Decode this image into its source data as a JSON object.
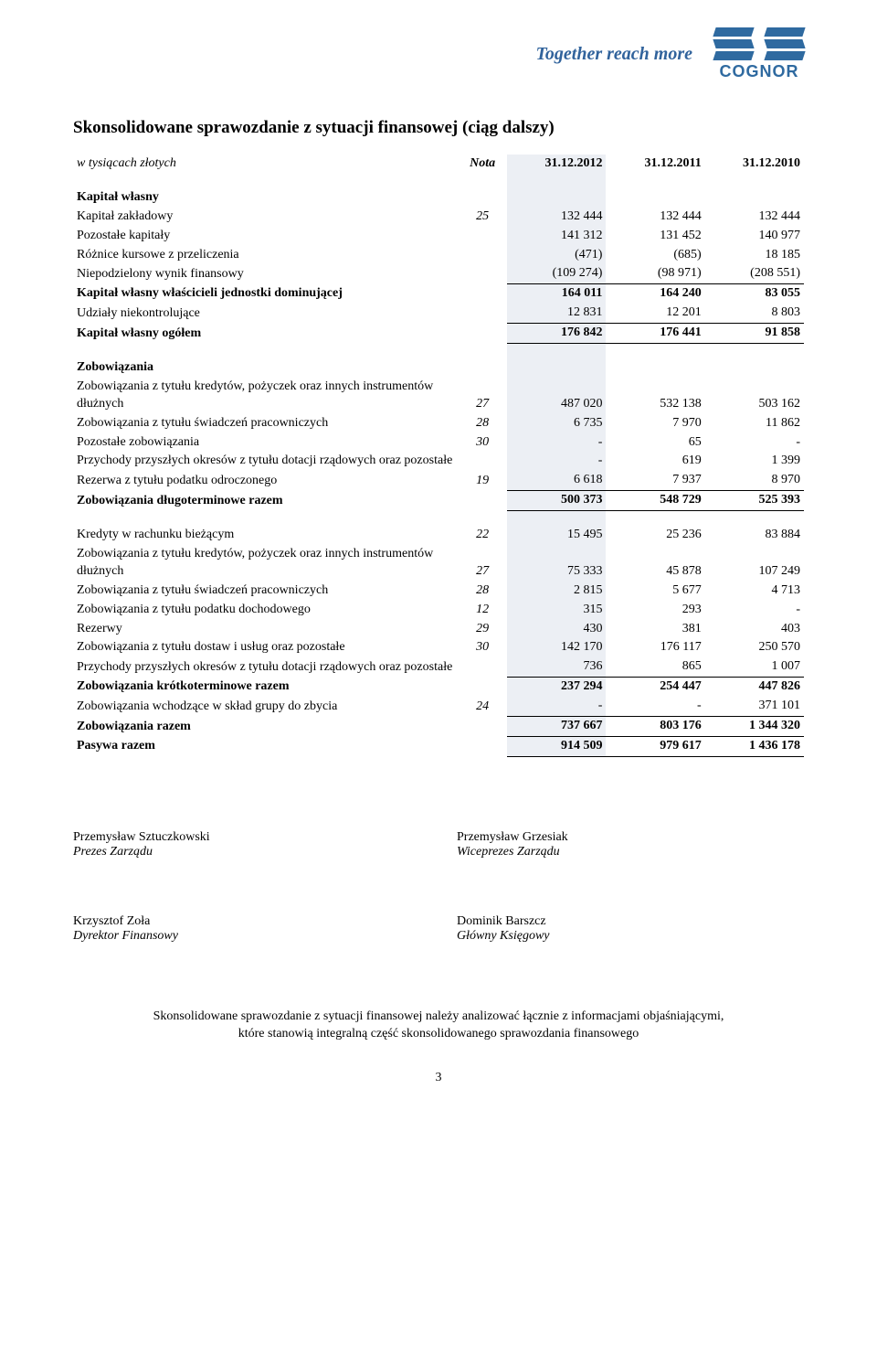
{
  "header": {
    "slogan": "Together reach more",
    "logo_text": "COGNOR",
    "logo_color": "#2f6aa0"
  },
  "title": "Skonsolidowane sprawozdanie z sytuacji finansowej (ciąg dalszy)",
  "currency_note": "w tysiącach złotych",
  "columns": {
    "nota": "Nota",
    "c1": "31.12.2012",
    "c2": "31.12.2011",
    "c3": "31.12.2010"
  },
  "sectA_head": "Kapitał własny",
  "rows_a": [
    {
      "label": "Kapitał zakładowy",
      "nota": "25",
      "v1": "132 444",
      "v2": "132 444",
      "v3": "132 444"
    },
    {
      "label": "Pozostałe kapitały",
      "nota": "",
      "v1": "141 312",
      "v2": "131 452",
      "v3": "140 977"
    },
    {
      "label": "Różnice kursowe z przeliczenia",
      "nota": "",
      "v1": "(471)",
      "v2": "(685)",
      "v3": "18 185"
    },
    {
      "label": "Niepodzielony wynik finansowy",
      "nota": "",
      "v1": "(109 274)",
      "v2": "(98 971)",
      "v3": "(208 551)"
    }
  ],
  "kap_wl_jd": {
    "label": "Kapitał własny właścicieli jednostki dominującej",
    "v1": "164 011",
    "v2": "164 240",
    "v3": "83 055"
  },
  "udz_nk": {
    "label": "Udziały niekontrolujące",
    "v1": "12 831",
    "v2": "12 201",
    "v3": "8 803"
  },
  "kap_og": {
    "label": "Kapitał własny ogółem",
    "v1": "176 842",
    "v2": "176 441",
    "v3": "91 858"
  },
  "sectB_head": "Zobowiązania",
  "rows_b": [
    {
      "label": "Zobowiązania z tytułu kredytów, pożyczek oraz innych instrumentów dłużnych",
      "nota": "27",
      "v1": "487 020",
      "v2": "532 138",
      "v3": "503 162"
    },
    {
      "label": "Zobowiązania z tytułu świadczeń pracowniczych",
      "nota": "28",
      "v1": "6 735",
      "v2": "7 970",
      "v3": "11 862"
    },
    {
      "label": "Pozostałe zobowiązania",
      "nota": "30",
      "v1": "-",
      "v2": "65",
      "v3": "-"
    },
    {
      "label": "Przychody przyszłych okresów z tytułu dotacji rządowych oraz pozostałe",
      "nota": "",
      "v1": "-",
      "v2": "619",
      "v3": "1 399"
    },
    {
      "label": "Rezerwa z tytułu podatku odroczonego",
      "nota": "19",
      "v1": "6 618",
      "v2": "7 937",
      "v3": "8 970"
    }
  ],
  "zob_dlug": {
    "label": "Zobowiązania długoterminowe razem",
    "v1": "500 373",
    "v2": "548 729",
    "v3": "525 393"
  },
  "rows_c": [
    {
      "label": "Kredyty w rachunku bieżącym",
      "nota": "22",
      "v1": "15 495",
      "v2": "25 236",
      "v3": "83 884"
    },
    {
      "label": "Zobowiązania z tytułu kredytów, pożyczek oraz innych instrumentów dłużnych",
      "nota": "27",
      "v1": "75 333",
      "v2": "45 878",
      "v3": "107 249"
    },
    {
      "label": "Zobowiązania z tytułu świadczeń pracowniczych",
      "nota": "28",
      "v1": "2 815",
      "v2": "5 677",
      "v3": "4 713"
    },
    {
      "label": "Zobowiązania z tytułu podatku dochodowego",
      "nota": "12",
      "v1": "315",
      "v2": "293",
      "v3": "-"
    },
    {
      "label": "Rezerwy",
      "nota": "29",
      "v1": "430",
      "v2": "381",
      "v3": "403"
    },
    {
      "label": "Zobowiązania z tytułu dostaw i usług oraz pozostałe",
      "nota": "30",
      "v1": "142 170",
      "v2": "176 117",
      "v3": "250 570"
    },
    {
      "label": "Przychody przyszłych okresów z tytułu dotacji rządowych oraz pozostałe",
      "nota": "",
      "v1": "736",
      "v2": "865",
      "v3": "1 007"
    }
  ],
  "zob_krot": {
    "label": "Zobowiązania krótkoterminowe razem",
    "v1": "237 294",
    "v2": "254 447",
    "v3": "447 826"
  },
  "zob_zbycie": {
    "label": "Zobowiązania wchodzące w skład grupy do zbycia",
    "nota": "24",
    "v1": "-",
    "v2": "-",
    "v3": "371 101"
  },
  "zob_razem": {
    "label": "Zobowiązania razem",
    "v1": "737 667",
    "v2": "803 176",
    "v3": "1 344 320"
  },
  "pasywa": {
    "label": "Pasywa razem",
    "v1": "914 509",
    "v2": "979 617",
    "v3": "1 436 178"
  },
  "sign": [
    {
      "name": "Przemysław Sztuczkowski",
      "role": "Prezes Zarządu"
    },
    {
      "name": "Przemysław Grzesiak",
      "role": "Wiceprezes Zarządu"
    },
    {
      "name": "Krzysztof Zoła",
      "role": "Dyrektor Finansowy"
    },
    {
      "name": "Dominik Barszcz",
      "role": "Główny Księgowy"
    }
  ],
  "footnote_l1": "Skonsolidowane sprawozdanie z sytuacji finansowej należy analizować łącznie z informacjami objaśniającymi,",
  "footnote_l2": "które stanowią integralną część skonsolidowanego sprawozdania finansowego",
  "page_number": "3",
  "style": {
    "hl_bg": "#eceff4",
    "text_color": "#000000",
    "slogan_color": "#31639c"
  }
}
